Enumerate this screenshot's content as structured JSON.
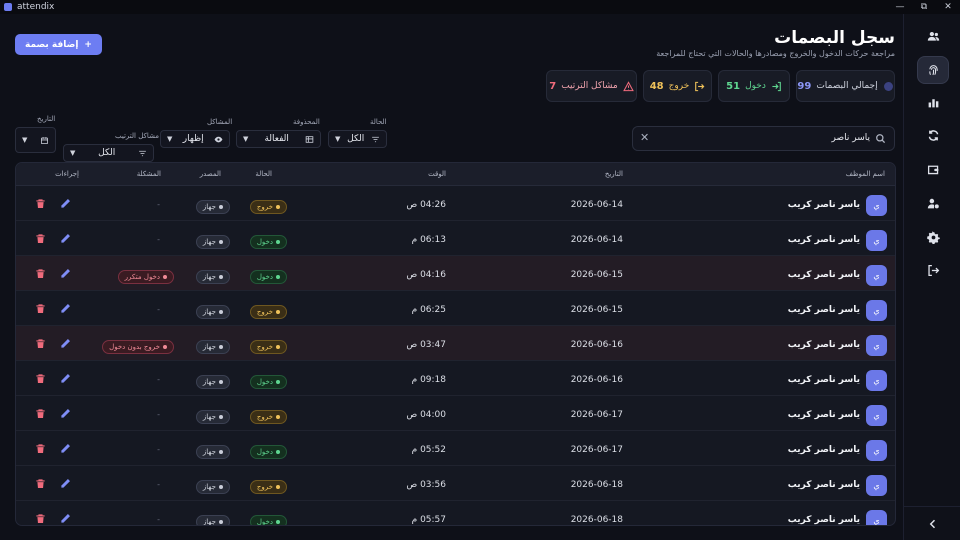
{
  "window": {
    "title": "attendix",
    "minimize": "—",
    "maximize": "⧉",
    "close": "✕"
  },
  "header": {
    "title": "سجل البصمات",
    "subtitle": "مراجعة حركات الدخول والخروج ومصادرها والحالات التي تحتاج للمراجعة",
    "add_button": "إضافة بصمة",
    "add_icon": "+"
  },
  "stats": [
    {
      "label": "إجمالي البصمات",
      "value": "99",
      "color": "#8b96f6",
      "icon": "fingerprint-icon"
    },
    {
      "label": "دخول",
      "value": "51",
      "color": "#5fd690",
      "icon": "login-icon"
    },
    {
      "label": "خروج",
      "value": "48",
      "color": "#f0c25a",
      "icon": "logout-icon"
    },
    {
      "label": "مشاكل الترتيب",
      "value": "7",
      "color": "#f06b7c",
      "icon": "warning-icon"
    }
  ],
  "search": {
    "value": "ياسر ناصر",
    "clear": "✕"
  },
  "filters": {
    "status": {
      "label": "الحالة",
      "value": "الكل"
    },
    "deleted": {
      "label": "المحذوفة",
      "value": "الفعالة"
    },
    "problems": {
      "label": "المشاكل",
      "value": "إظهار"
    },
    "order_problems": {
      "label": "مشاكل الترتيب",
      "value": "الكل"
    },
    "date": {
      "label": "التاريخ",
      "value": ""
    }
  },
  "table": {
    "columns": {
      "employee": "اسم الموظف",
      "date": "التاريخ",
      "time": "الوقت",
      "status": "الحالة",
      "source": "المصدر",
      "problem": "المشكلة",
      "actions": "إجراءات"
    },
    "rows": [
      {
        "initial": "ي",
        "name": "ياسر ناصر كريب",
        "date": "2026-06-14",
        "time": "04:26 ص",
        "status": "خروج",
        "status_type": "exit",
        "source": "جهاز",
        "problem": "-"
      },
      {
        "initial": "ي",
        "name": "ياسر ناصر كريب",
        "date": "2026-06-14",
        "time": "06:13 م",
        "status": "دخول",
        "status_type": "enter",
        "source": "جهاز",
        "problem": "-"
      },
      {
        "initial": "ي",
        "name": "ياسر ناصر كريب",
        "date": "2026-06-15",
        "time": "04:16 ص",
        "status": "دخول",
        "status_type": "enter",
        "source": "جهاز",
        "problem": "دخول متكرر"
      },
      {
        "initial": "ي",
        "name": "ياسر ناصر كريب",
        "date": "2026-06-15",
        "time": "06:25 م",
        "status": "خروج",
        "status_type": "exit",
        "source": "جهاز",
        "problem": "-"
      },
      {
        "initial": "ي",
        "name": "ياسر ناصر كريب",
        "date": "2026-06-16",
        "time": "03:47 ص",
        "status": "خروج",
        "status_type": "exit",
        "source": "جهاز",
        "problem": "خروج بدون دخول"
      },
      {
        "initial": "ي",
        "name": "ياسر ناصر كريب",
        "date": "2026-06-16",
        "time": "09:18 م",
        "status": "دخول",
        "status_type": "enter",
        "source": "جهاز",
        "problem": "-"
      },
      {
        "initial": "ي",
        "name": "ياسر ناصر كريب",
        "date": "2026-06-17",
        "time": "04:00 ص",
        "status": "خروج",
        "status_type": "exit",
        "source": "جهاز",
        "problem": "-"
      },
      {
        "initial": "ي",
        "name": "ياسر ناصر كريب",
        "date": "2026-06-17",
        "time": "05:52 م",
        "status": "دخول",
        "status_type": "enter",
        "source": "جهاز",
        "problem": "-"
      },
      {
        "initial": "ي",
        "name": "ياسر ناصر كريب",
        "date": "2026-06-18",
        "time": "03:56 ص",
        "status": "خروج",
        "status_type": "exit",
        "source": "جهاز",
        "problem": "-"
      },
      {
        "initial": "ي",
        "name": "ياسر ناصر كريب",
        "date": "2026-06-18",
        "time": "05:57 م",
        "status": "دخول",
        "status_type": "enter",
        "source": "جهاز",
        "problem": "-"
      }
    ]
  },
  "sidebar": {
    "items": [
      {
        "icon": "users-icon",
        "active": false
      },
      {
        "icon": "fingerprint-icon",
        "active": true
      },
      {
        "icon": "bar-chart-icon",
        "active": false
      },
      {
        "icon": "sync-icon",
        "active": false
      },
      {
        "icon": "wallet-icon",
        "active": false
      },
      {
        "icon": "user-settings-icon",
        "active": false
      },
      {
        "icon": "gear-icon",
        "active": false
      },
      {
        "icon": "logout-icon",
        "active": false
      }
    ],
    "collapse_icon": "chevron-left-icon"
  }
}
